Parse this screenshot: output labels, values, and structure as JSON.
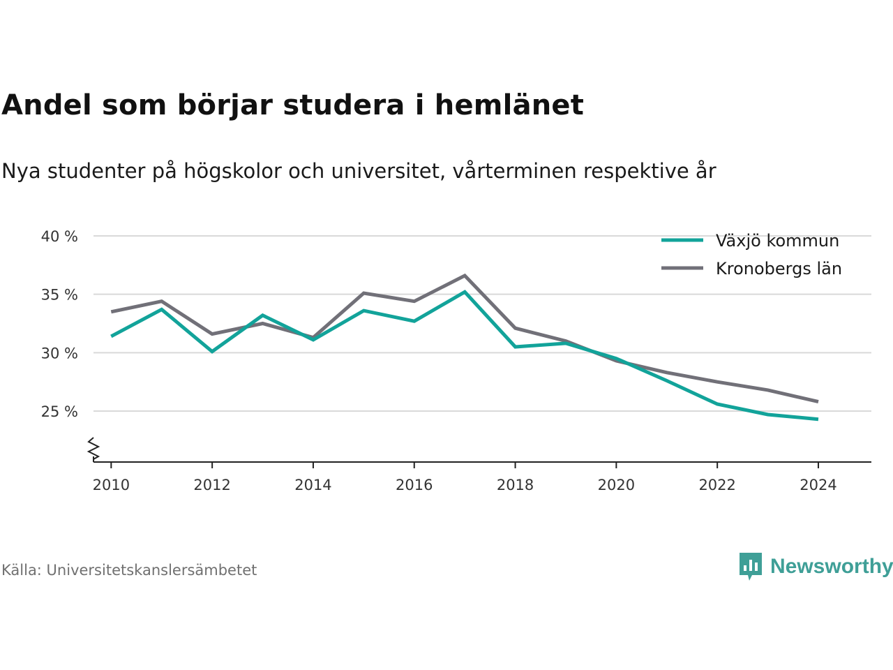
{
  "header": {
    "title": "Andel som börjar studera i hemlänet",
    "subtitle": "Nya studenter på högskolor och universitet, vårterminen respektive år"
  },
  "footer": {
    "source": "Källa: Universitetskanslersämbetet",
    "brand_name": "Newsworthy",
    "brand_icon": "newsworthy-logo-icon",
    "brand_color": "#3f9f97"
  },
  "chart_data": {
    "type": "line",
    "title": "Andel som börjar studera i hemlänet",
    "subtitle": "Nya studenter på högskolor och universitet, vårterminen respektive år",
    "xlabel": "",
    "ylabel": "",
    "x": [
      2010,
      2011,
      2012,
      2013,
      2014,
      2015,
      2016,
      2017,
      2018,
      2019,
      2020,
      2021,
      2022,
      2023,
      2024
    ],
    "x_ticks": [
      "2010",
      "2012",
      "2014",
      "2016",
      "2018",
      "2020",
      "2022",
      "2024"
    ],
    "y_ticks": [
      {
        "value": 25,
        "label": "25 %"
      },
      {
        "value": 30,
        "label": "30 %"
      },
      {
        "value": 35,
        "label": "35 %"
      },
      {
        "value": 40,
        "label": "40 %"
      }
    ],
    "xlim": [
      2009.65,
      2025.05
    ],
    "ylim": [
      21.6,
      40
    ],
    "y_axis_break": true,
    "grid": "horizontal",
    "legend_position": "top-right",
    "series": [
      {
        "name": "Växjö kommun",
        "color": "#12a39a",
        "values": [
          31.4,
          33.7,
          30.1,
          33.2,
          31.1,
          33.6,
          32.7,
          35.2,
          30.5,
          30.8,
          29.5,
          27.6,
          25.6,
          24.7,
          24.3
        ]
      },
      {
        "name": "Kronobergs län",
        "color": "#717078",
        "values": [
          33.5,
          34.4,
          31.6,
          32.5,
          31.3,
          35.1,
          34.4,
          36.6,
          32.1,
          31.0,
          29.3,
          28.3,
          27.5,
          26.8,
          25.8
        ]
      }
    ]
  }
}
